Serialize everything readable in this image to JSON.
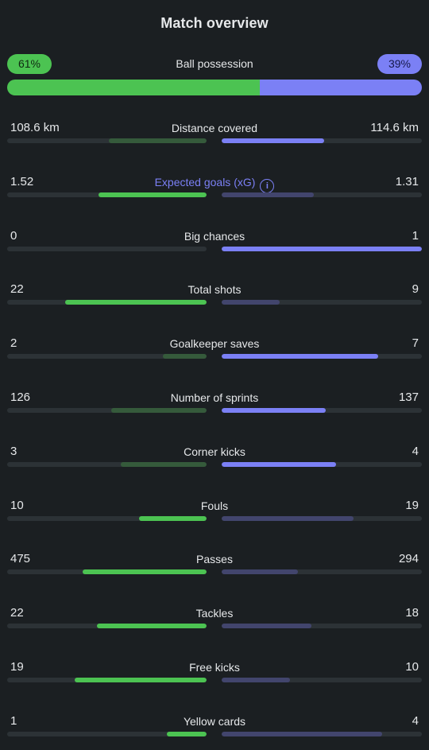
{
  "title": "Match overview",
  "colors": {
    "home_strong": "#4cc352",
    "home_dim": "#355a3b",
    "away_strong": "#7b80f5",
    "away_dim": "#42456d",
    "track": "#2c3236",
    "background": "#1b1f22"
  },
  "possession": {
    "label": "Ball possession",
    "home_text": "61%",
    "away_text": "39%",
    "home_value": 61,
    "away_value": 39
  },
  "stats": [
    {
      "label": "Distance covered",
      "home": "108.6 km",
      "away": "114.6 km",
      "home_fill": 0.49,
      "away_fill": 0.51,
      "home_strong": false,
      "away_strong": true
    },
    {
      "label": "Expected goals (xG)",
      "home": "1.52",
      "away": "1.31",
      "home_fill": 0.54,
      "away_fill": 0.46,
      "home_strong": true,
      "away_strong": false,
      "link": true,
      "icon": "info-icon",
      "icon_glyph": "i"
    },
    {
      "label": "Big chances",
      "home": "0",
      "away": "1",
      "home_fill": 0.0,
      "away_fill": 1.0,
      "home_strong": false,
      "away_strong": true
    },
    {
      "label": "Total shots",
      "home": "22",
      "away": "9",
      "home_fill": 0.71,
      "away_fill": 0.29,
      "home_strong": true,
      "away_strong": false
    },
    {
      "label": "Goalkeeper saves",
      "home": "2",
      "away": "7",
      "home_fill": 0.22,
      "away_fill": 0.78,
      "home_strong": false,
      "away_strong": true
    },
    {
      "label": "Number of sprints",
      "home": "126",
      "away": "137",
      "home_fill": 0.48,
      "away_fill": 0.52,
      "home_strong": false,
      "away_strong": true
    },
    {
      "label": "Corner kicks",
      "home": "3",
      "away": "4",
      "home_fill": 0.43,
      "away_fill": 0.57,
      "home_strong": false,
      "away_strong": true
    },
    {
      "label": "Fouls",
      "home": "10",
      "away": "19",
      "home_fill": 0.34,
      "away_fill": 0.66,
      "home_strong": true,
      "away_strong": false
    },
    {
      "label": "Passes",
      "home": "475",
      "away": "294",
      "home_fill": 0.62,
      "away_fill": 0.38,
      "home_strong": true,
      "away_strong": false
    },
    {
      "label": "Tackles",
      "home": "22",
      "away": "18",
      "home_fill": 0.55,
      "away_fill": 0.45,
      "home_strong": true,
      "away_strong": false
    },
    {
      "label": "Free kicks",
      "home": "19",
      "away": "10",
      "home_fill": 0.66,
      "away_fill": 0.34,
      "home_strong": true,
      "away_strong": false
    },
    {
      "label": "Yellow cards",
      "home": "1",
      "away": "4",
      "home_fill": 0.2,
      "away_fill": 0.8,
      "home_strong": true,
      "away_strong": false
    }
  ]
}
